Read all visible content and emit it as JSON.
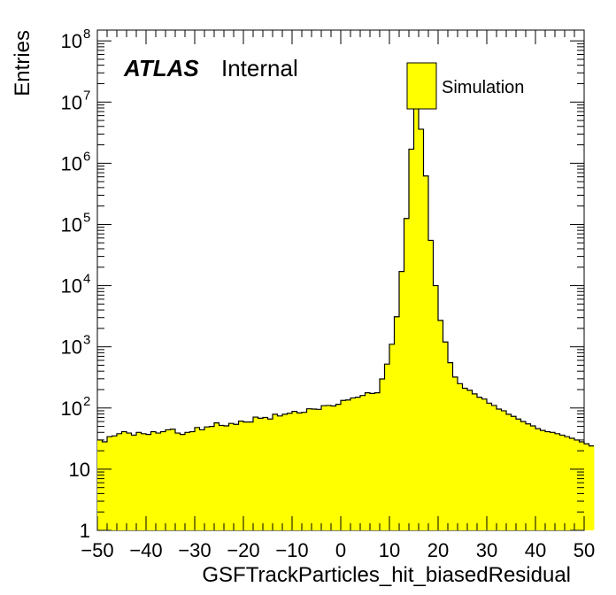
{
  "chart_data": {
    "type": "bar",
    "subtype": "histogram",
    "xlabel": "GSFTrackParticles_hit_biasedResidual",
    "ylabel": "Entries",
    "xlim": [
      -50,
      50
    ],
    "ylim": [
      1,
      150000000
    ],
    "log_y": true,
    "grid": false,
    "x_ticks": [
      -50,
      -40,
      -30,
      -20,
      -10,
      0,
      10,
      20,
      30,
      40,
      50
    ],
    "x_tick_labels": [
      "−50",
      "−40",
      "−30",
      "−20",
      "−10",
      "0",
      "10",
      "20",
      "30",
      "40",
      "50"
    ],
    "y_ticks": [
      {
        "value": 1,
        "base": "1",
        "exp": ""
      },
      {
        "value": 10,
        "base": "10",
        "exp": ""
      },
      {
        "value": 100,
        "base": "10",
        "exp": "2"
      },
      {
        "value": 1000,
        "base": "10",
        "exp": "3"
      },
      {
        "value": 10000,
        "base": "10",
        "exp": "4"
      },
      {
        "value": 100000,
        "base": "10",
        "exp": "5"
      },
      {
        "value": 1000000,
        "base": "10",
        "exp": "6"
      },
      {
        "value": 10000000,
        "base": "10",
        "exp": "7"
      },
      {
        "value": 100000000,
        "base": "10",
        "exp": "8"
      }
    ],
    "bin_width": 1,
    "bin_edges_start": -50,
    "fill_color": "#ffff00",
    "line_color": "#000000",
    "atlas_label": "ATLAS",
    "atlas_sub": "Internal",
    "legend": {
      "position": "top-right",
      "entries": [
        "Simulation"
      ]
    },
    "series": [
      {
        "name": "Simulation",
        "values": [
          30,
          28,
          34,
          35,
          38,
          41,
          39,
          36,
          40,
          38,
          37,
          41,
          39,
          41,
          44,
          45,
          39,
          37,
          40,
          41,
          48,
          44,
          49,
          50,
          57,
          52,
          51,
          56,
          54,
          61,
          59,
          59,
          71,
          68,
          70,
          66,
          79,
          74,
          79,
          82,
          88,
          83,
          85,
          97,
          96,
          95,
          109,
          110,
          108,
          115,
          133,
          135,
          146,
          150,
          160,
          177,
          173,
          177,
          298,
          522,
          1100,
          3100,
          17000,
          125000,
          1700000,
          11000000,
          3600000,
          620000,
          55000,
          10000,
          2700,
          1200,
          550,
          320,
          250,
          210,
          195,
          170,
          150,
          140,
          120,
          110,
          96,
          90,
          79,
          73,
          66,
          60,
          55,
          51,
          46,
          43,
          41,
          40,
          38,
          36,
          34,
          32,
          30,
          28,
          26,
          24
        ]
      }
    ]
  }
}
